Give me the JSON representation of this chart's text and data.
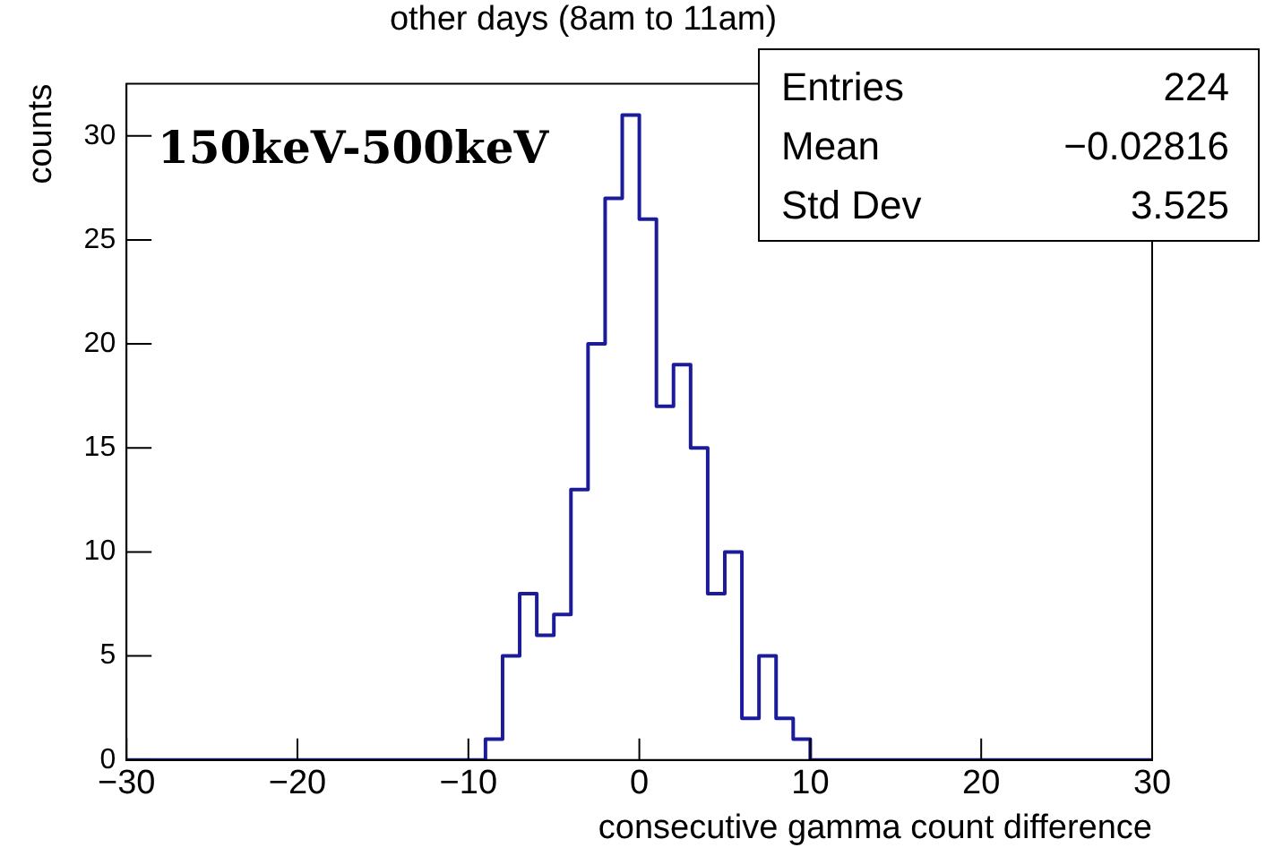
{
  "chart_data": {
    "type": "histogram",
    "title": "other days (8am to 11am)",
    "xlabel": "consecutive gamma count difference",
    "ylabel": "counts",
    "annotations": [
      "150keV-500keV",
      "Entries",
      "224",
      "Mean",
      "−0.02816",
      "Std Dev",
      "3.525"
    ],
    "bins": [
      -30,
      -29,
      -28,
      -27,
      -26,
      -25,
      -24,
      -23,
      -22,
      -21,
      -20,
      -19,
      -18,
      -17,
      -16,
      -15,
      -14,
      -13,
      -12,
      -11,
      -10,
      -9,
      -8,
      -7,
      -6,
      -5,
      -4,
      -3,
      -2,
      -1,
      0,
      1,
      2,
      3,
      4,
      5,
      6,
      7,
      8,
      9,
      10,
      11,
      12,
      13,
      14,
      15,
      16,
      17,
      18,
      19,
      20,
      21,
      22,
      23,
      24,
      25,
      26,
      27,
      28,
      29,
      30
    ],
    "values": [
      0,
      0,
      0,
      0,
      0,
      0,
      0,
      0,
      0,
      0,
      0,
      0,
      0,
      0,
      0,
      0,
      0,
      0,
      0,
      0,
      0,
      1,
      5,
      8,
      6,
      7,
      13,
      20,
      27,
      31,
      26,
      17,
      19,
      15,
      8,
      10,
      2,
      5,
      2,
      1,
      0,
      0,
      0,
      0,
      0,
      0,
      0,
      0,
      0,
      0,
      0,
      0,
      0,
      0,
      0,
      0,
      0,
      0,
      0,
      0
    ],
    "color": "#1c1c9a",
    "xlim": [
      -30,
      30
    ],
    "ylim": [
      0,
      32.5
    ],
    "xticks": [
      -30,
      -20,
      -10,
      0,
      10,
      20,
      30
    ],
    "yticks": [
      0,
      5,
      10,
      15,
      20,
      25,
      30
    ],
    "grid": false,
    "legend": false
  }
}
